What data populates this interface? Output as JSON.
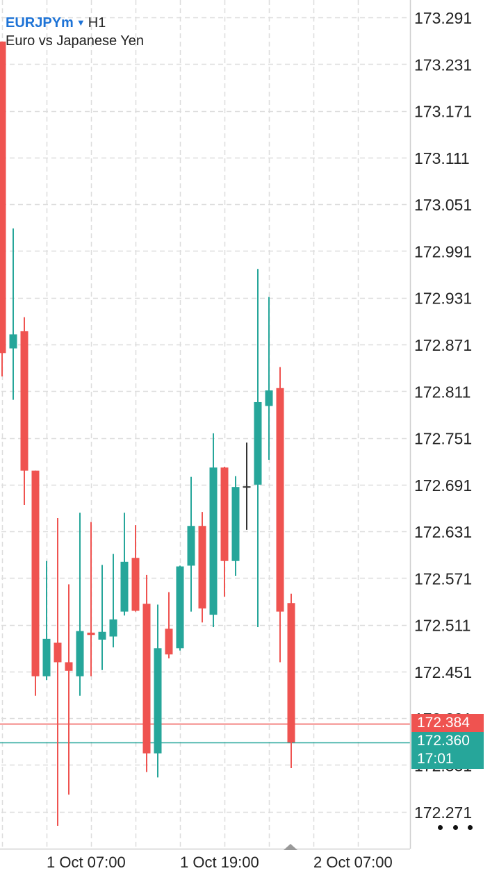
{
  "header": {
    "symbol": "EURJPYm",
    "timeframe": "H1",
    "description": "Euro vs Japanese Yen"
  },
  "price_tags": {
    "ask": "172.384",
    "bid": "172.360",
    "timer": "17:01"
  },
  "colors": {
    "bull": "#26a69a",
    "bear": "#ef5350",
    "neutral": "#333333",
    "accent": "#1e73d6",
    "grid": "#dddddd"
  },
  "icons": {
    "menu": "more-dots-icon",
    "scroll": "scroll-handle-icon"
  },
  "chart_data": {
    "type": "candlestick",
    "title": "EURJPYm H1",
    "ylim": [
      172.232,
      173.312
    ],
    "y_ticks": [
      "173.291",
      "173.231",
      "173.171",
      "173.111",
      "173.051",
      "172.991",
      "172.931",
      "172.871",
      "172.811",
      "172.751",
      "172.691",
      "172.631",
      "172.571",
      "172.511",
      "172.451",
      "172.391",
      "172.331",
      "172.271"
    ],
    "x_ticks": [
      {
        "label": "1 Oct 07:00",
        "index": 4
      },
      {
        "label": "1 Oct 19:00",
        "index": 16
      },
      {
        "label": "2 Oct 07:00",
        "index": 28
      }
    ],
    "ask_line": 172.384,
    "bid_line": 172.36,
    "candles": [
      {
        "o": 173.26,
        "h": 173.26,
        "l": 172.83,
        "c": 172.86
      },
      {
        "o": 172.866,
        "h": 173.02,
        "l": 172.8,
        "c": 172.884
      },
      {
        "o": 172.888,
        "h": 172.906,
        "l": 172.665,
        "c": 172.709
      },
      {
        "o": 172.709,
        "h": 172.709,
        "l": 172.42,
        "c": 172.445
      },
      {
        "o": 172.445,
        "h": 172.593,
        "l": 172.44,
        "c": 172.493
      },
      {
        "o": 172.488,
        "h": 172.648,
        "l": 172.253,
        "c": 172.463
      },
      {
        "o": 172.463,
        "h": 172.563,
        "l": 172.293,
        "c": 172.452
      },
      {
        "o": 172.445,
        "h": 172.655,
        "l": 172.42,
        "c": 172.503
      },
      {
        "o": 172.501,
        "h": 172.643,
        "l": 172.445,
        "c": 172.498
      },
      {
        "o": 172.492,
        "h": 172.588,
        "l": 172.453,
        "c": 172.502
      },
      {
        "o": 172.496,
        "h": 172.602,
        "l": 172.482,
        "c": 172.518
      },
      {
        "o": 172.528,
        "h": 172.655,
        "l": 172.523,
        "c": 172.592
      },
      {
        "o": 172.597,
        "h": 172.639,
        "l": 172.528,
        "c": 172.529
      },
      {
        "o": 172.538,
        "h": 172.575,
        "l": 172.322,
        "c": 172.346
      },
      {
        "o": 172.346,
        "h": 172.537,
        "l": 172.315,
        "c": 172.481
      },
      {
        "o": 172.506,
        "h": 172.553,
        "l": 172.468,
        "c": 172.473
      },
      {
        "o": 172.481,
        "h": 172.587,
        "l": 172.478,
        "c": 172.586
      },
      {
        "o": 172.587,
        "h": 172.701,
        "l": 172.528,
        "c": 172.638
      },
      {
        "o": 172.638,
        "h": 172.656,
        "l": 172.514,
        "c": 172.532
      },
      {
        "o": 172.524,
        "h": 172.757,
        "l": 172.508,
        "c": 172.713
      },
      {
        "o": 172.713,
        "h": 172.714,
        "l": 172.547,
        "c": 172.593
      },
      {
        "o": 172.593,
        "h": 172.702,
        "l": 172.574,
        "c": 172.688
      },
      {
        "o": 172.688,
        "h": 172.745,
        "l": 172.633,
        "c": 172.688
      },
      {
        "o": 172.691,
        "h": 172.968,
        "l": 172.508,
        "c": 172.797
      },
      {
        "o": 172.792,
        "h": 172.932,
        "l": 172.723,
        "c": 172.812
      },
      {
        "o": 172.815,
        "h": 172.842,
        "l": 172.463,
        "c": 172.528
      },
      {
        "o": 172.539,
        "h": 172.551,
        "l": 172.327,
        "c": 172.36
      }
    ]
  }
}
